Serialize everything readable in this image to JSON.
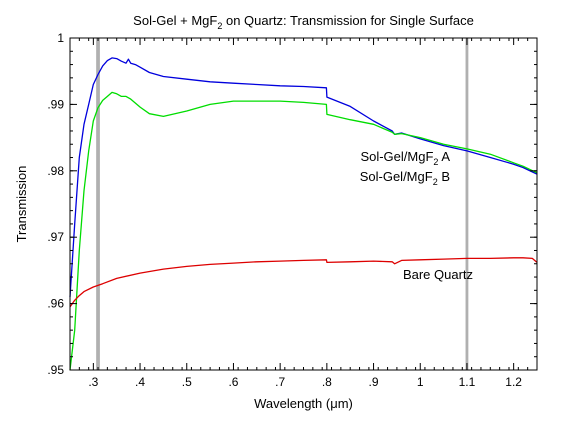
{
  "chart_data": {
    "type": "line",
    "title": "Sol-Gel + MgF2 on Quartz: Transmission for Single Surface",
    "title_parts": {
      "prefix": "Sol-Gel + MgF",
      "subscript": "2",
      "suffix": " on Quartz: Transmission for Single Surface"
    },
    "xlabel": "Wavelength (μm)",
    "ylabel": "Transmission",
    "xlim": [
      0.25,
      1.25
    ],
    "ylim": [
      0.95,
      1.0
    ],
    "x_ticks": [
      0.3,
      0.4,
      0.5,
      0.6,
      0.7,
      0.8,
      0.9,
      1.0,
      1.1,
      1.2
    ],
    "x_tick_labels": [
      ".3",
      ".4",
      ".5",
      ".6",
      ".7",
      ".8",
      ".9",
      "1",
      "1.1",
      "1.2"
    ],
    "y_ticks": [
      0.95,
      0.96,
      0.97,
      0.98,
      0.99,
      1.0
    ],
    "y_tick_labels": [
      ".95",
      ".96",
      ".97",
      ".98",
      ".99",
      "1"
    ],
    "grid": false,
    "legend_placement": "right, inline next to curves",
    "shaded_bands": [
      {
        "x_from": 0.306,
        "x_to": 0.314,
        "color": "#b0b0b0"
      },
      {
        "x_from": 1.097,
        "x_to": 1.103,
        "color": "#b0b0b0"
      }
    ],
    "series": [
      {
        "name": "Sol-Gel/MgF2 A",
        "label_parts": {
          "prefix": "Sol-Gel/MgF",
          "subscript": "2",
          "suffix": " A"
        },
        "color": "#0000dd",
        "x": [
          0.25,
          0.26,
          0.27,
          0.28,
          0.29,
          0.3,
          0.31,
          0.32,
          0.33,
          0.34,
          0.35,
          0.36,
          0.37,
          0.375,
          0.38,
          0.39,
          0.4,
          0.42,
          0.45,
          0.5,
          0.55,
          0.6,
          0.65,
          0.7,
          0.75,
          0.799,
          0.8,
          0.85,
          0.9,
          0.94,
          0.945,
          0.96,
          1.0,
          1.05,
          1.1,
          1.15,
          1.2,
          1.22,
          1.25
        ],
        "y": [
          0.961,
          0.972,
          0.982,
          0.987,
          0.99,
          0.993,
          0.9945,
          0.9958,
          0.9966,
          0.997,
          0.9969,
          0.9965,
          0.9962,
          0.9968,
          0.9962,
          0.996,
          0.9956,
          0.9948,
          0.9942,
          0.9938,
          0.9934,
          0.9932,
          0.993,
          0.9928,
          0.9927,
          0.9925,
          0.9911,
          0.9897,
          0.9875,
          0.986,
          0.9855,
          0.9857,
          0.9848,
          0.9838,
          0.983,
          0.982,
          0.981,
          0.9805,
          0.9795
        ]
      },
      {
        "name": "Sol-Gel/MgF2 B",
        "label_parts": {
          "prefix": "Sol-Gel/MgF",
          "subscript": "2",
          "suffix": " B"
        },
        "color": "#00dd00",
        "x": [
          0.25,
          0.26,
          0.27,
          0.28,
          0.29,
          0.3,
          0.31,
          0.32,
          0.33,
          0.34,
          0.35,
          0.36,
          0.37,
          0.38,
          0.4,
          0.42,
          0.45,
          0.5,
          0.55,
          0.6,
          0.65,
          0.7,
          0.75,
          0.799,
          0.8,
          0.85,
          0.9,
          0.94,
          0.945,
          0.96,
          1.0,
          1.05,
          1.1,
          1.15,
          1.2,
          1.22,
          1.25
        ],
        "y": [
          0.95,
          0.956,
          0.968,
          0.977,
          0.983,
          0.9875,
          0.9895,
          0.9906,
          0.9912,
          0.9918,
          0.9916,
          0.9912,
          0.9912,
          0.9908,
          0.9896,
          0.9886,
          0.9882,
          0.989,
          0.99,
          0.9905,
          0.9905,
          0.9905,
          0.9903,
          0.99,
          0.9885,
          0.9877,
          0.987,
          0.9858,
          0.9855,
          0.9856,
          0.985,
          0.984,
          0.9833,
          0.9825,
          0.9812,
          0.9807,
          0.9797
        ]
      },
      {
        "name": "Bare Quartz",
        "color": "#dd0000",
        "x": [
          0.25,
          0.26,
          0.27,
          0.28,
          0.3,
          0.32,
          0.35,
          0.4,
          0.45,
          0.5,
          0.55,
          0.6,
          0.65,
          0.7,
          0.75,
          0.799,
          0.8,
          0.85,
          0.9,
          0.94,
          0.945,
          0.96,
          1.0,
          1.05,
          1.1,
          1.15,
          1.2,
          1.22,
          1.24,
          1.25
        ],
        "y": [
          0.9595,
          0.9605,
          0.9612,
          0.9618,
          0.9625,
          0.963,
          0.9638,
          0.9646,
          0.9652,
          0.9656,
          0.9659,
          0.9661,
          0.9663,
          0.9664,
          0.9665,
          0.9666,
          0.9662,
          0.9663,
          0.9664,
          0.9663,
          0.966,
          0.9665,
          0.9666,
          0.9667,
          0.9668,
          0.9668,
          0.9669,
          0.9669,
          0.9668,
          0.9662
        ]
      }
    ],
    "annotations": [
      {
        "text": "Bare Quartz",
        "series": "Bare Quartz"
      }
    ]
  }
}
